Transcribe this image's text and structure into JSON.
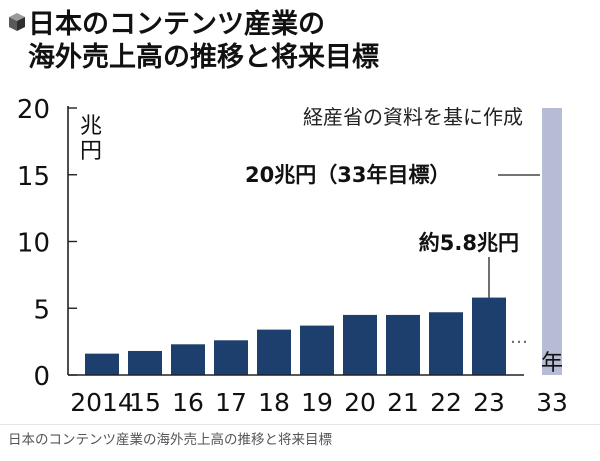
{
  "title_lines": [
    "日本のコンテンツ産業の",
    "海外売上高の推移と将来目標"
  ],
  "source_note": "経産省の資料を基に作成",
  "caption": "日本のコンテンツ産業の海外売上高の推移と将来目標",
  "icon": "cube-icon",
  "colors": {
    "bar": "#1c3f6e",
    "target_bar": "#b5bcd3",
    "axis": "#222222",
    "text": "#111111",
    "caption": "#555555"
  },
  "chart_data": {
    "type": "bar",
    "categories": [
      "2014",
      "15",
      "16",
      "17",
      "18",
      "19",
      "20",
      "21",
      "22",
      "23"
    ],
    "values": [
      1.6,
      1.8,
      2.3,
      2.6,
      3.4,
      3.7,
      4.5,
      4.5,
      4.7,
      5.8
    ],
    "target": {
      "category": "33",
      "value": 20,
      "label": "20兆円（33年目標）"
    },
    "ellipsis": "…",
    "ylim": [
      0,
      20
    ],
    "yticks": [
      "0",
      "5",
      "10",
      "15",
      "20"
    ],
    "ylabel": "兆円",
    "xlabel": "年",
    "annotation": "約5.8兆円",
    "grid": false
  }
}
